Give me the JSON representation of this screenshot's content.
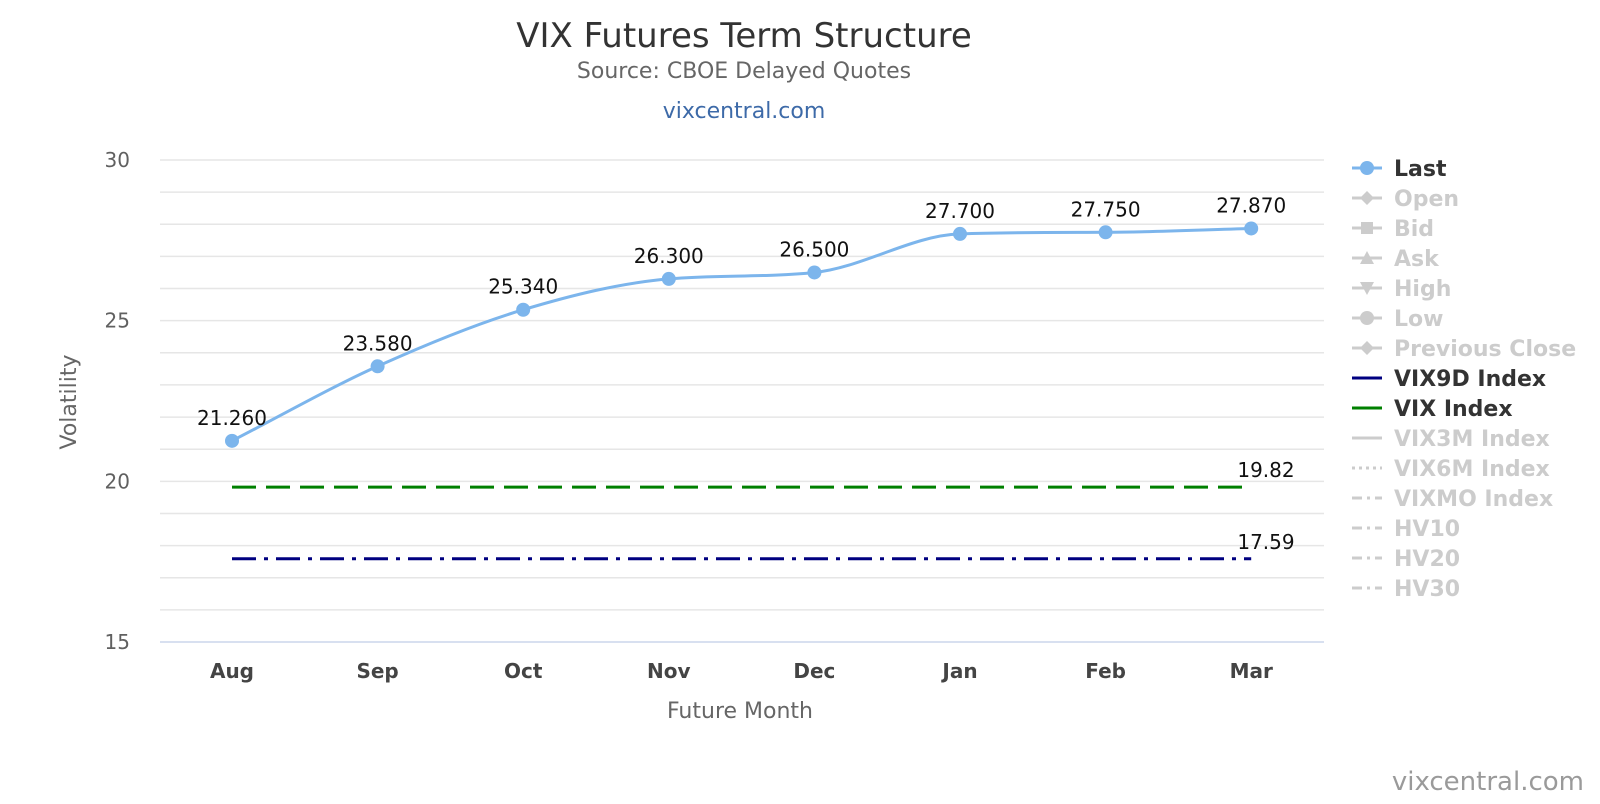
{
  "chart_data": {
    "type": "line",
    "title": "VIX Futures Term Structure",
    "subtitle": "Source: CBOE Delayed Quotes",
    "link": "vixcentral.com",
    "xlabel": "Future Month",
    "ylabel": "Volatility",
    "ylim": [
      15,
      30
    ],
    "y_ticks": [
      15,
      20,
      25,
      30
    ],
    "y_ticks_labels": [
      "15",
      "20",
      "25",
      "30"
    ],
    "y_grid_step": 1,
    "grid": true,
    "legend_position": "right",
    "categories": [
      "Aug",
      "Sep",
      "Oct",
      "Nov",
      "Dec",
      "Jan",
      "Feb",
      "Mar"
    ],
    "series": [
      {
        "name": "Last",
        "values": [
          21.26,
          23.58,
          25.34,
          26.3,
          26.5,
          27.7,
          27.75,
          27.87
        ],
        "labels": [
          "21.260",
          "23.580",
          "25.340",
          "26.300",
          "26.500",
          "27.700",
          "27.750",
          "27.870"
        ],
        "color": "#7cb5ec",
        "style": "solid-markers"
      },
      {
        "name": "VIX9D Index",
        "value": 17.59,
        "label": "17.59",
        "color": "#000080",
        "style": "dash-dot"
      },
      {
        "name": "VIX Index",
        "value": 19.82,
        "label": "19.82",
        "color": "#008000",
        "style": "dashed"
      }
    ],
    "legend": [
      {
        "name": "Last",
        "symbol": "circle",
        "line": "solid",
        "active": true,
        "color": "#7cb5ec"
      },
      {
        "name": "Open",
        "symbol": "diamond",
        "line": "solid",
        "active": false
      },
      {
        "name": "Bid",
        "symbol": "square",
        "line": "solid",
        "active": false
      },
      {
        "name": "Ask",
        "symbol": "triangle",
        "line": "solid",
        "active": false
      },
      {
        "name": "High",
        "symbol": "triangle-down",
        "line": "solid",
        "active": false
      },
      {
        "name": "Low",
        "symbol": "circle",
        "line": "solid",
        "active": false
      },
      {
        "name": "Previous Close",
        "symbol": "diamond",
        "line": "solid",
        "active": false
      },
      {
        "name": "VIX9D Index",
        "symbol": "none",
        "line": "solid",
        "active": true,
        "color": "#000080"
      },
      {
        "name": "VIX Index",
        "symbol": "none",
        "line": "solid",
        "active": true,
        "color": "#008000"
      },
      {
        "name": "VIX3M Index",
        "symbol": "none",
        "line": "solid",
        "active": false
      },
      {
        "name": "VIX6M Index",
        "symbol": "none",
        "line": "dotted",
        "active": false
      },
      {
        "name": "VIXMO Index",
        "symbol": "none",
        "line": "dash-dot",
        "active": false
      },
      {
        "name": "HV10",
        "symbol": "none",
        "line": "dash-dot",
        "active": false
      },
      {
        "name": "HV20",
        "symbol": "none",
        "line": "dash-dot",
        "active": false
      },
      {
        "name": "HV30",
        "symbol": "none",
        "line": "dash-dot",
        "active": false
      }
    ],
    "colors": {
      "inactive_legend": "#cccccc",
      "active_legend_text": "#333333",
      "grid": "#e6e6e6"
    }
  },
  "watermark": "vixcentral.com"
}
